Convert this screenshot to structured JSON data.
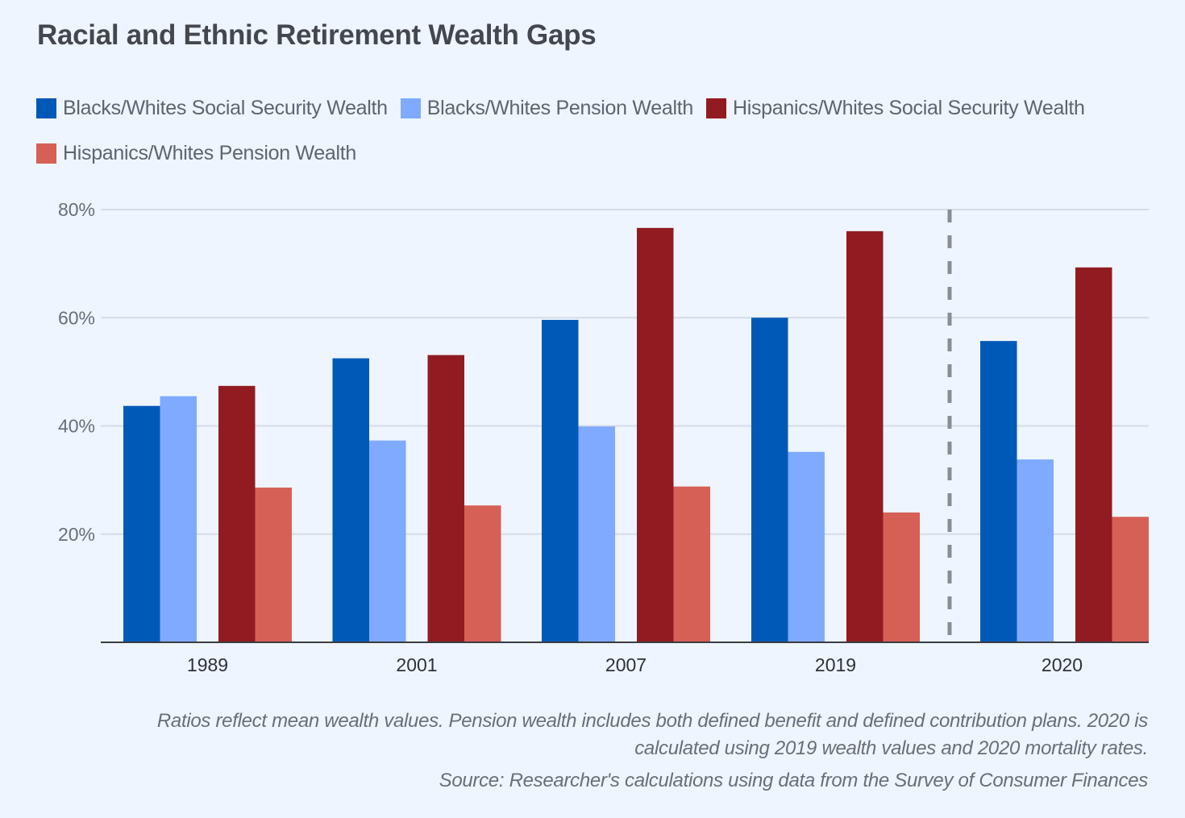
{
  "chart_data": {
    "type": "bar",
    "title": "Racial and Ethnic Retirement Wealth Gaps",
    "xlabel": "",
    "ylabel": "",
    "categories": [
      "1989",
      "2001",
      "2007",
      "2019",
      "2020"
    ],
    "series": [
      {
        "name": "Blacks/Whites Social Security Wealth",
        "color": "#0059B7",
        "values": [
          43.7,
          52.5,
          59.6,
          60.0,
          55.7
        ]
      },
      {
        "name": "Blacks/Whites Pension Wealth",
        "color": "#7FAAFF",
        "values": [
          45.5,
          37.3,
          39.9,
          35.2,
          33.8
        ]
      },
      {
        "name": "Hispanics/Whites Social Security Wealth",
        "color": "#921B22",
        "values": [
          47.4,
          53.1,
          76.6,
          76.0,
          69.3
        ]
      },
      {
        "name": "Hispanics/Whites Pension Wealth",
        "color": "#D66055",
        "values": [
          28.6,
          25.3,
          28.8,
          24.0,
          23.2
        ]
      }
    ],
    "ylim": [
      0,
      80
    ],
    "yticks": [
      20,
      40,
      60,
      80
    ],
    "ytick_labels": [
      "20%",
      "40%",
      "60%",
      "80%"
    ],
    "grid": true,
    "legend_position": "top-left",
    "annotations": [
      {
        "type": "dashed-vertical-separator",
        "between": [
          "2019",
          "2020"
        ],
        "color": "#8A8E91"
      }
    ]
  },
  "legend": {
    "items": [
      {
        "label": "Blacks/Whites Social Security Wealth",
        "color": "#0059B7"
      },
      {
        "label": "Blacks/Whites Pension Wealth",
        "color": "#7FAAFF"
      },
      {
        "label": "Hispanics/Whites Social Security Wealth",
        "color": "#921B22"
      },
      {
        "label": "Hispanics/Whites Pension Wealth",
        "color": "#D66055"
      }
    ]
  },
  "footnote": {
    "note_line1": "Ratios reflect mean wealth values. Pension wealth includes both defined benefit and defined contribution plans. 2020 is",
    "note_line2": "calculated using 2019 wealth values and 2020 mortality rates.",
    "source": "Source: Researcher's calculations using data from the Survey of Consumer Finances"
  },
  "colors": {
    "background": "#EEF5FF",
    "gridline": "#D5DCE6",
    "axis": "#3A3C42",
    "separator": "#8A8E91"
  }
}
